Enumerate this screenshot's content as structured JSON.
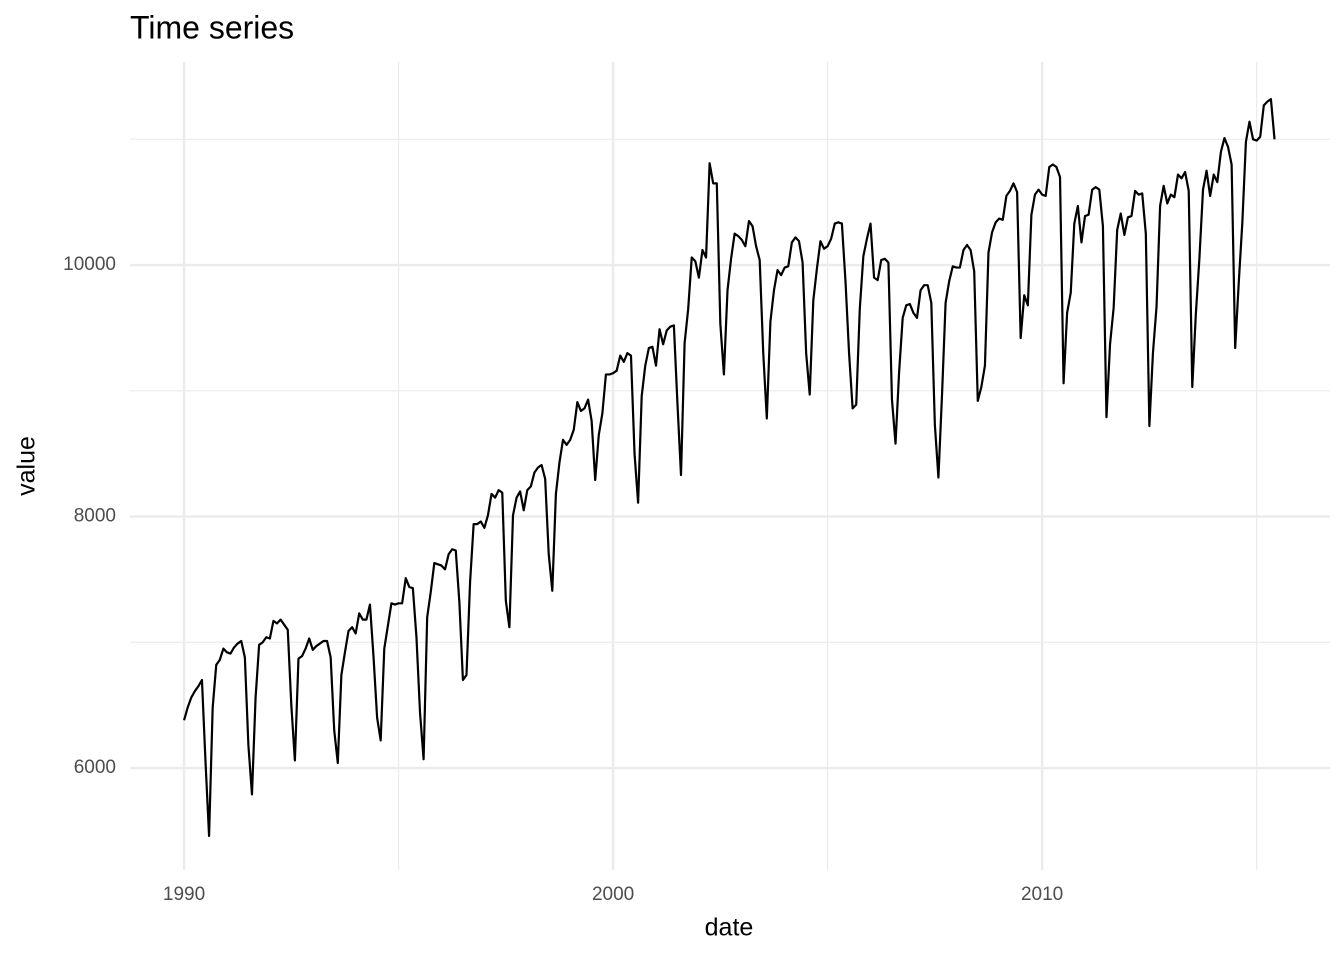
{
  "chart_data": {
    "type": "line",
    "title": "Time series",
    "x_label": "date",
    "y_label": "value",
    "xlim": [
      1988.74,
      2016.71
    ],
    "ylim": [
      5189,
      11615
    ],
    "xticks": [
      1990,
      2000,
      2010
    ],
    "yticks": [
      6000,
      8000,
      10000
    ],
    "xminorticks": [
      1995,
      2005,
      2015
    ],
    "yminorticks": [
      7000,
      9000,
      11000
    ],
    "grid": true,
    "color": "#000000",
    "x": [
      1990,
      1990.083,
      1990.167,
      1990.25,
      1990.333,
      1990.417,
      1990.5,
      1990.583,
      1990.667,
      1990.75,
      1990.833,
      1990.917,
      1991,
      1991.083,
      1991.167,
      1991.25,
      1991.333,
      1991.417,
      1991.5,
      1991.583,
      1991.667,
      1991.75,
      1991.833,
      1991.917,
      1992,
      1992.083,
      1992.167,
      1992.25,
      1992.333,
      1992.417,
      1992.5,
      1992.583,
      1992.667,
      1992.75,
      1992.833,
      1992.917,
      1993,
      1993.083,
      1993.167,
      1993.25,
      1993.333,
      1993.417,
      1993.5,
      1993.583,
      1993.667,
      1993.75,
      1993.833,
      1993.917,
      1994,
      1994.083,
      1994.167,
      1994.25,
      1994.333,
      1994.417,
      1994.5,
      1994.583,
      1994.667,
      1994.75,
      1994.833,
      1994.917,
      1995,
      1995.083,
      1995.167,
      1995.25,
      1995.333,
      1995.417,
      1995.5,
      1995.583,
      1995.667,
      1995.75,
      1995.833,
      1995.917,
      1996,
      1996.083,
      1996.167,
      1996.25,
      1996.333,
      1996.417,
      1996.5,
      1996.583,
      1996.667,
      1996.75,
      1996.833,
      1996.917,
      1997,
      1997.083,
      1997.167,
      1997.25,
      1997.333,
      1997.417,
      1997.5,
      1997.583,
      1997.667,
      1997.75,
      1997.833,
      1997.917,
      1998,
      1998.083,
      1998.167,
      1998.25,
      1998.333,
      1998.417,
      1998.5,
      1998.583,
      1998.667,
      1998.75,
      1998.833,
      1998.917,
      1999,
      1999.083,
      1999.167,
      1999.25,
      1999.333,
      1999.417,
      1999.5,
      1999.583,
      1999.667,
      1999.75,
      1999.833,
      1999.917,
      2000,
      2000.083,
      2000.167,
      2000.25,
      2000.333,
      2000.417,
      2000.5,
      2000.583,
      2000.667,
      2000.75,
      2000.833,
      2000.917,
      2001,
      2001.083,
      2001.167,
      2001.25,
      2001.333,
      2001.417,
      2001.5,
      2001.583,
      2001.667,
      2001.75,
      2001.833,
      2001.917,
      2002,
      2002.083,
      2002.167,
      2002.25,
      2002.333,
      2002.417,
      2002.5,
      2002.583,
      2002.667,
      2002.75,
      2002.833,
      2002.917,
      2003,
      2003.083,
      2003.167,
      2003.25,
      2003.333,
      2003.417,
      2003.5,
      2003.583,
      2003.667,
      2003.75,
      2003.833,
      2003.917,
      2004,
      2004.083,
      2004.167,
      2004.25,
      2004.333,
      2004.417,
      2004.5,
      2004.583,
      2004.667,
      2004.75,
      2004.833,
      2004.917,
      2005,
      2005.083,
      2005.167,
      2005.25,
      2005.333,
      2005.417,
      2005.5,
      2005.583,
      2005.667,
      2005.75,
      2005.833,
      2005.917,
      2006,
      2006.083,
      2006.167,
      2006.25,
      2006.333,
      2006.417,
      2006.5,
      2006.583,
      2006.667,
      2006.75,
      2006.833,
      2006.917,
      2007,
      2007.083,
      2007.167,
      2007.25,
      2007.333,
      2007.417,
      2007.5,
      2007.583,
      2007.667,
      2007.75,
      2007.833,
      2007.917,
      2008,
      2008.083,
      2008.167,
      2008.25,
      2008.333,
      2008.417,
      2008.5,
      2008.583,
      2008.667,
      2008.75,
      2008.833,
      2008.917,
      2009,
      2009.083,
      2009.167,
      2009.25,
      2009.333,
      2009.417,
      2009.5,
      2009.583,
      2009.667,
      2009.75,
      2009.833,
      2009.917,
      2010,
      2010.083,
      2010.167,
      2010.25,
      2010.333,
      2010.417,
      2010.5,
      2010.583,
      2010.667,
      2010.75,
      2010.833,
      2010.917,
      2011,
      2011.083,
      2011.167,
      2011.25,
      2011.333,
      2011.417,
      2011.5,
      2011.583,
      2011.667,
      2011.75,
      2011.833,
      2011.917,
      2012,
      2012.083,
      2012.167,
      2012.25,
      2012.333,
      2012.417,
      2012.5,
      2012.583,
      2012.667,
      2012.75,
      2012.833,
      2012.917,
      2013,
      2013.083,
      2013.167,
      2013.25,
      2013.333,
      2013.417,
      2013.5,
      2013.583,
      2013.667,
      2013.75,
      2013.833,
      2013.917,
      2014,
      2014.083,
      2014.167,
      2014.25,
      2014.333,
      2014.417,
      2014.5,
      2014.583,
      2014.667,
      2014.75,
      2014.833,
      2014.917,
      2015,
      2015.083,
      2015.167,
      2015.25,
      2015.333,
      2015.417
    ],
    "values": [
      6380,
      6480,
      6560,
      6610,
      6650,
      6700,
      6050,
      5460,
      6480,
      6820,
      6860,
      6950,
      6920,
      6910,
      6960,
      6990,
      7010,
      6880,
      6180,
      5790,
      6560,
      6980,
      7000,
      7040,
      7030,
      7170,
      7150,
      7180,
      7140,
      7100,
      6500,
      6060,
      6870,
      6890,
      6950,
      7030,
      6940,
      6970,
      6990,
      7010,
      7010,
      6880,
      6300,
      6040,
      6740,
      6920,
      7090,
      7120,
      7070,
      7230,
      7180,
      7180,
      7300,
      6880,
      6400,
      6220,
      6950,
      7130,
      7310,
      7300,
      7310,
      7310,
      7510,
      7440,
      7430,
      7040,
      6440,
      6070,
      7200,
      7400,
      7630,
      7620,
      7610,
      7580,
      7700,
      7740,
      7730,
      7320,
      6700,
      6740,
      7480,
      7940,
      7940,
      7960,
      7910,
      8010,
      8180,
      8150,
      8210,
      8190,
      7330,
      7120,
      8010,
      8150,
      8200,
      8050,
      8210,
      8240,
      8350,
      8390,
      8410,
      8300,
      7700,
      7410,
      8180,
      8430,
      8610,
      8570,
      8610,
      8690,
      8910,
      8840,
      8860,
      8930,
      8760,
      8290,
      8650,
      8820,
      9130,
      9130,
      9140,
      9160,
      9280,
      9230,
      9300,
      9280,
      8500,
      8110,
      8960,
      9200,
      9340,
      9350,
      9200,
      9490,
      9370,
      9480,
      9510,
      9520,
      8900,
      8330,
      9380,
      9650,
      10060,
      10030,
      9900,
      10120,
      10060,
      10810,
      10650,
      10650,
      9530,
      9130,
      9800,
      10050,
      10250,
      10230,
      10200,
      10150,
      10350,
      10310,
      10150,
      10040,
      9300,
      8780,
      9550,
      9800,
      9960,
      9920,
      9980,
      9990,
      10180,
      10220,
      10190,
      10020,
      9300,
      8970,
      9720,
      9970,
      10190,
      10130,
      10150,
      10210,
      10330,
      10340,
      10330,
      9870,
      9300,
      8860,
      8890,
      9650,
      10070,
      10210,
      10330,
      9900,
      9880,
      10040,
      10050,
      10020,
      8930,
      8580,
      9150,
      9580,
      9680,
      9690,
      9620,
      9580,
      9800,
      9840,
      9840,
      9700,
      8730,
      8310,
      8970,
      9700,
      9870,
      9990,
      9980,
      9980,
      10120,
      10160,
      10120,
      9950,
      8920,
      9030,
      9200,
      10100,
      10260,
      10340,
      10370,
      10360,
      10550,
      10590,
      10650,
      10580,
      9420,
      9760,
      9680,
      10400,
      10560,
      10600,
      10560,
      10550,
      10780,
      10800,
      10780,
      10700,
      9060,
      9620,
      9780,
      10330,
      10470,
      10180,
      10390,
      10400,
      10600,
      10620,
      10600,
      10310,
      8790,
      9370,
      9660,
      10280,
      10410,
      10240,
      10380,
      10390,
      10590,
      10560,
      10570,
      10250,
      8720,
      9300,
      9670,
      10470,
      10630,
      10490,
      10560,
      10540,
      10720,
      10690,
      10740,
      10590,
      9030,
      9610,
      10060,
      10600,
      10750,
      10550,
      10720,
      10660,
      10900,
      11010,
      10940,
      10800,
      9340,
      9860,
      10340,
      10980,
      11140,
      11000,
      10990,
      11020,
      11270,
      11300,
      11320,
      11000
    ]
  }
}
